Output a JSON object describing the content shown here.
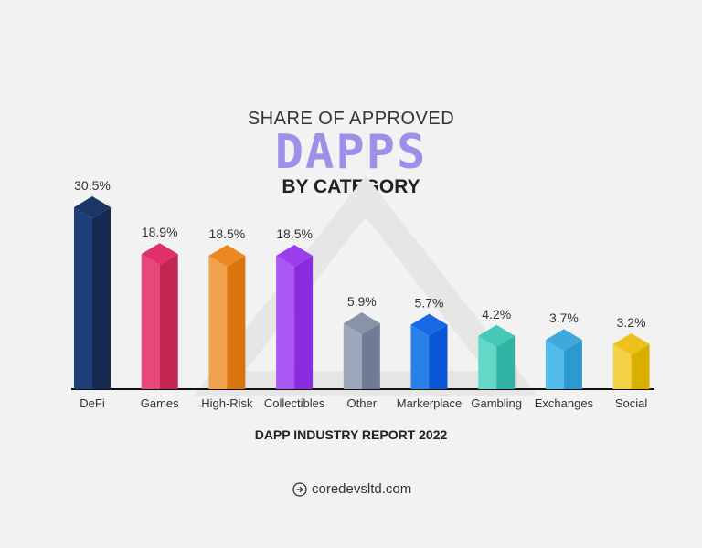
{
  "title": {
    "line1": "SHARE OF APPROVED",
    "line2": "DAPPS",
    "line3": "BY CATEGORY"
  },
  "footer": "DAPP INDUSTRY REPORT 2022",
  "website": {
    "icon": "arrow-circle-right-icon",
    "label": "coredevsltd.com"
  },
  "chart_data": {
    "type": "bar",
    "title": "SHARE OF APPROVED DAPPS BY CATEGORY",
    "categories": [
      "DeFi",
      "Games",
      "High-Risk",
      "Collectibles",
      "Other",
      "Markerplace",
      "Gambling",
      "Exchanges",
      "Social"
    ],
    "values": [
      30.5,
      18.9,
      18.5,
      18.5,
      5.9,
      5.7,
      4.2,
      3.7,
      3.2
    ],
    "labels": [
      "30.5%",
      "18.9%",
      "18.5%",
      "18.5%",
      "5.9%",
      "5.7%",
      "4.2%",
      "3.7%",
      "3.2%"
    ],
    "unit": "%",
    "grid": false,
    "colors": [
      [
        "#1f3f7a",
        "#162a52",
        "#1b3566"
      ],
      [
        "#e8497a",
        "#c42653",
        "#e0306a"
      ],
      [
        "#f0a24f",
        "#d9740f",
        "#ea8822"
      ],
      [
        "#a957f5",
        "#8a2be0",
        "#9b3ef0"
      ],
      [
        "#9ca7ba",
        "#6f7b94",
        "#8893a8"
      ],
      [
        "#2b7fe9",
        "#0b56d6",
        "#1668e6"
      ],
      [
        "#62d9c7",
        "#2fb3a3",
        "#45c8b6"
      ],
      [
        "#52bbea",
        "#2a9ad0",
        "#3fa9dd"
      ],
      [
        "#f3d247",
        "#d9b000",
        "#eec21c"
      ]
    ]
  }
}
